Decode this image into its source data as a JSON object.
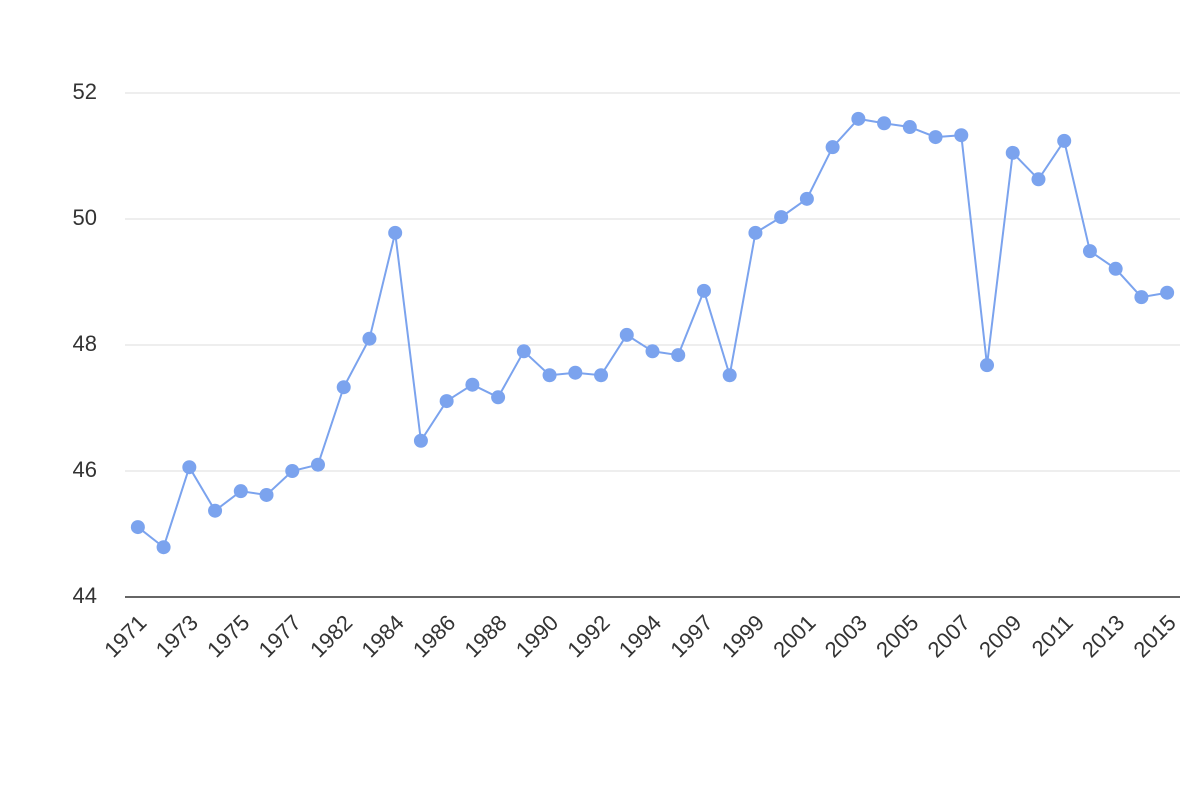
{
  "chart_data": {
    "type": "line",
    "categories": [
      "1971",
      null,
      "1973",
      null,
      "1975",
      null,
      "1977",
      null,
      "1982",
      null,
      "1984",
      null,
      "1986",
      null,
      "1988",
      null,
      "1990",
      null,
      "1992",
      null,
      "1994",
      null,
      "1997",
      null,
      "1999",
      null,
      "2001",
      null,
      "2003",
      null,
      "2005",
      null,
      "2007",
      null,
      "2009",
      null,
      "2011",
      null,
      "2013",
      null,
      "2015"
    ],
    "values": [
      45.11,
      44.79,
      46.06,
      45.37,
      45.68,
      45.62,
      46.0,
      46.1,
      47.33,
      48.1,
      49.78,
      46.48,
      47.11,
      47.37,
      47.17,
      47.9,
      47.52,
      47.56,
      47.52,
      48.16,
      47.9,
      47.84,
      48.86,
      47.52,
      49.78,
      50.03,
      50.32,
      51.14,
      51.59,
      51.52,
      51.46,
      51.3,
      51.33,
      47.68,
      51.05,
      50.63,
      51.24,
      49.49,
      49.21,
      48.76,
      48.83
    ],
    "color": "#7ba3ee",
    "ylim": [
      44,
      52
    ],
    "yticks": [
      44,
      46,
      48,
      50,
      52
    ],
    "grid": true
  }
}
